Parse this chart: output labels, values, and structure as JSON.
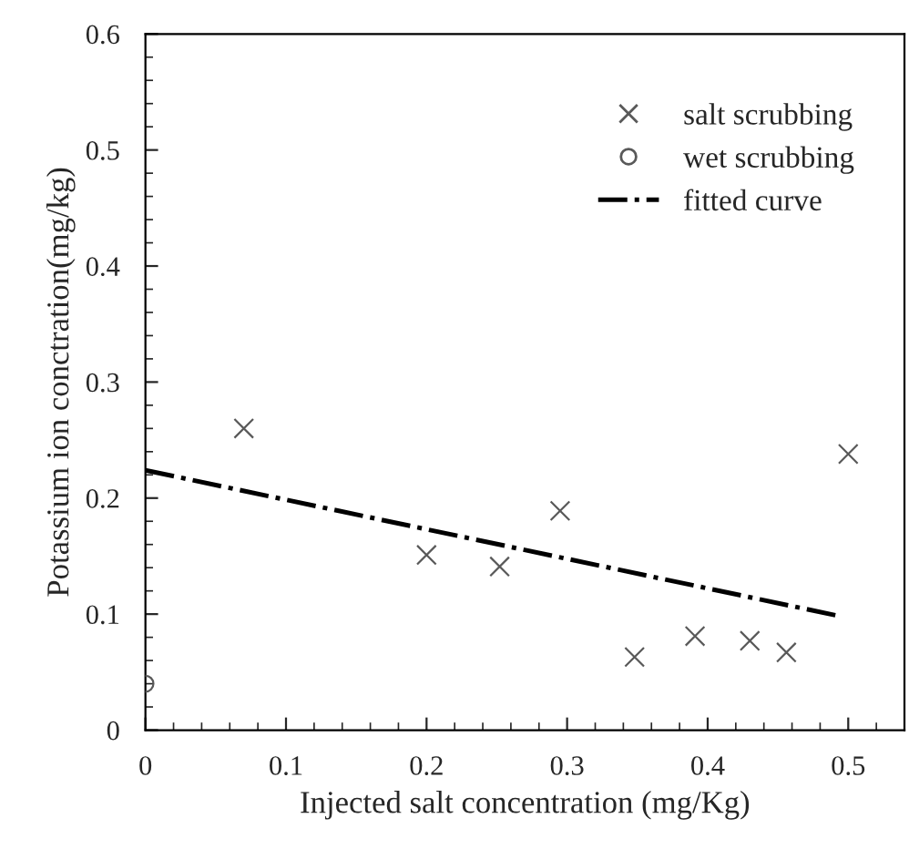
{
  "chart_data": {
    "type": "scatter",
    "xlabel": "Injected salt concentration (mg/Kg)",
    "ylabel": "Potassium ion conctration(mg/kg)",
    "xlim": [
      0,
      0.54
    ],
    "xticks": [
      0,
      0.1,
      0.2,
      0.3,
      0.4,
      0.5
    ],
    "ylim": [
      0,
      0.6
    ],
    "yticks": [
      0,
      0.1,
      0.2,
      0.3,
      0.4,
      0.5,
      0.6
    ],
    "grid": false,
    "legend": "top right",
    "series": [
      {
        "name": "salt scrubbing",
        "marker": "cross",
        "color": "#595959",
        "x": [
          0.07,
          0.2,
          0.252,
          0.295,
          0.348,
          0.391,
          0.43,
          0.456,
          0.5
        ],
        "values": [
          0.26,
          0.151,
          0.141,
          0.189,
          0.063,
          0.081,
          0.077,
          0.067,
          0.238
        ]
      },
      {
        "name": "wet scrubbing",
        "marker": "circle",
        "color": "#595959",
        "x": [
          0
        ],
        "values": [
          0.04
        ]
      },
      {
        "name": "fitted curve",
        "type": "line",
        "marker": "none",
        "line_style": "dashdot",
        "color": "#000000",
        "x": [
          0,
          0.495
        ],
        "values": [
          0.224,
          0.098
        ]
      }
    ]
  }
}
